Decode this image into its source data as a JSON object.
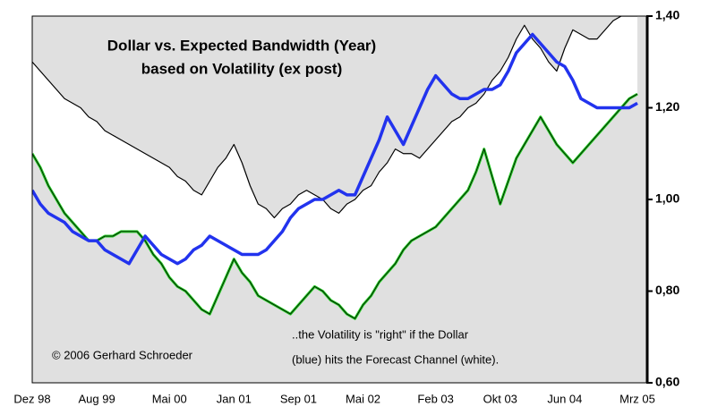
{
  "chart_data": {
    "type": "line",
    "title": "Dollar vs. Expected Bandwidth (Year)",
    "subtitle": "based on Volatility (ex post)",
    "annotations": [
      "© 2006 Gerhard Schroeder",
      "..the Volatility is \"right\" if the Dollar",
      "(blue) hits the Forecast Channel (white)."
    ],
    "categories": [
      "Dez 98",
      null,
      null,
      null,
      null,
      null,
      null,
      null,
      "Aug 99",
      null,
      null,
      null,
      null,
      null,
      null,
      null,
      null,
      "Mai 00",
      null,
      null,
      null,
      null,
      null,
      null,
      null,
      "Jan 01",
      null,
      null,
      null,
      null,
      null,
      null,
      null,
      "Sep 01",
      null,
      null,
      null,
      null,
      null,
      null,
      null,
      "Mai 02",
      null,
      null,
      null,
      null,
      null,
      null,
      null,
      null,
      "Feb 03",
      null,
      null,
      null,
      null,
      null,
      null,
      null,
      "Okt 03",
      null,
      null,
      null,
      null,
      null,
      null,
      null,
      "Jun 04",
      null,
      null,
      null,
      null,
      null,
      null,
      null,
      null,
      "Mrz 05"
    ],
    "series": [
      {
        "color": "#000000",
        "values": [
          1.3,
          1.28,
          1.26,
          1.24,
          1.22,
          1.21,
          1.2,
          1.18,
          1.17,
          1.15,
          1.14,
          1.13,
          1.12,
          1.11,
          1.1,
          1.09,
          1.08,
          1.07,
          1.05,
          1.04,
          1.02,
          1.01,
          1.04,
          1.07,
          1.09,
          1.12,
          1.08,
          1.03,
          0.99,
          0.98,
          0.96,
          0.98,
          0.99,
          1.01,
          1.02,
          1.01,
          1.0,
          0.98,
          0.97,
          0.99,
          1.0,
          1.02,
          1.03,
          1.06,
          1.08,
          1.11,
          1.1,
          1.1,
          1.09,
          1.11,
          1.13,
          1.15,
          1.17,
          1.18,
          1.2,
          1.21,
          1.23,
          1.26,
          1.28,
          1.31,
          1.35,
          1.38,
          1.35,
          1.33,
          1.3,
          1.28,
          1.33,
          1.37,
          1.36,
          1.35,
          1.35,
          1.37,
          1.39,
          1.4,
          1.4,
          1.4
        ]
      },
      {
        "color": "#22cc22",
        "values": [
          1.1,
          1.07,
          1.03,
          1.0,
          0.97,
          0.95,
          0.93,
          0.91,
          0.91,
          0.92,
          0.92,
          0.93,
          0.93,
          0.93,
          0.91,
          0.88,
          0.86,
          0.83,
          0.81,
          0.8,
          0.78,
          0.76,
          0.75,
          0.79,
          0.83,
          0.87,
          0.84,
          0.82,
          0.79,
          0.78,
          0.77,
          0.76,
          0.75,
          0.77,
          0.79,
          0.81,
          0.8,
          0.78,
          0.77,
          0.75,
          0.74,
          0.77,
          0.79,
          0.82,
          0.84,
          0.86,
          0.89,
          0.91,
          0.92,
          0.93,
          0.94,
          0.96,
          0.98,
          1.0,
          1.02,
          1.06,
          1.11,
          1.05,
          0.99,
          1.04,
          1.09,
          1.12,
          1.15,
          1.18,
          1.15,
          1.12,
          1.1,
          1.08,
          1.1,
          1.12,
          1.14,
          1.16,
          1.18,
          1.2,
          1.22,
          1.23
        ]
      },
      {
        "color": "#2233ee",
        "values": [
          1.02,
          0.99,
          0.97,
          0.96,
          0.95,
          0.93,
          0.92,
          0.91,
          0.91,
          0.89,
          0.88,
          0.87,
          0.86,
          0.89,
          0.92,
          0.9,
          0.88,
          0.87,
          0.86,
          0.87,
          0.89,
          0.9,
          0.92,
          0.91,
          0.9,
          0.89,
          0.88,
          0.88,
          0.88,
          0.89,
          0.91,
          0.93,
          0.96,
          0.98,
          0.99,
          1.0,
          1.0,
          1.01,
          1.02,
          1.01,
          1.01,
          1.05,
          1.09,
          1.13,
          1.18,
          1.15,
          1.12,
          1.16,
          1.2,
          1.24,
          1.27,
          1.25,
          1.23,
          1.22,
          1.22,
          1.23,
          1.24,
          1.24,
          1.25,
          1.28,
          1.32,
          1.34,
          1.36,
          1.34,
          1.32,
          1.3,
          1.29,
          1.26,
          1.22,
          1.21,
          1.2,
          1.2,
          1.2,
          1.2,
          1.2,
          1.21
        ]
      }
    ],
    "ylim": [
      0.6,
      1.4
    ],
    "yticks": [
      {
        "value": 0.6,
        "label": "0,60"
      },
      {
        "value": 0.8,
        "label": "0,80"
      },
      {
        "value": 1.0,
        "label": "1,00"
      },
      {
        "value": 1.2,
        "label": "1,20"
      },
      {
        "value": 1.4,
        "label": "1,40"
      }
    ],
    "y_axis_side": "right",
    "background": "#e0e0e0",
    "channel_fill": "#ffffff"
  }
}
